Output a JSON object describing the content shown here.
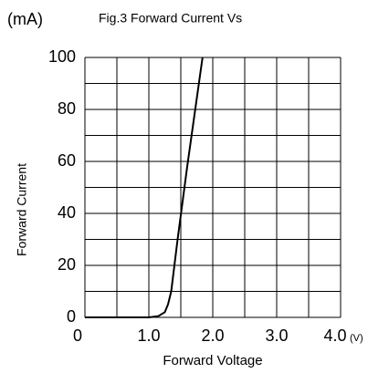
{
  "chart_data": {
    "type": "line",
    "title": "Fig.3 Forward Current Vs",
    "x_label": "Forward Voltage",
    "y_label": "Forward Current",
    "x_unit": "(V)",
    "y_unit": "(mA)",
    "x": [
      0,
      1.0,
      1.15,
      1.25,
      1.3,
      1.35,
      1.45,
      1.6,
      1.84
    ],
    "values": [
      0,
      0,
      0.5,
      2,
      5,
      10,
      30,
      58,
      100
    ],
    "color": "#000000",
    "xlim": [
      0,
      4
    ],
    "ylim": [
      0,
      100
    ],
    "xticks": [
      0,
      {
        "value": 1,
        "label": "1.0"
      },
      {
        "value": 2,
        "label": "2.0"
      },
      {
        "value": 3,
        "label": "3.0"
      },
      {
        "value": 4,
        "label": "4.0"
      }
    ],
    "yticks": [
      0,
      20,
      40,
      60,
      80,
      100
    ],
    "x_minor_ticks": [
      0.5,
      1.5,
      2.5,
      3.5
    ],
    "y_minor_ticks": [
      10,
      30,
      50,
      70,
      90
    ],
    "grid": true
  }
}
